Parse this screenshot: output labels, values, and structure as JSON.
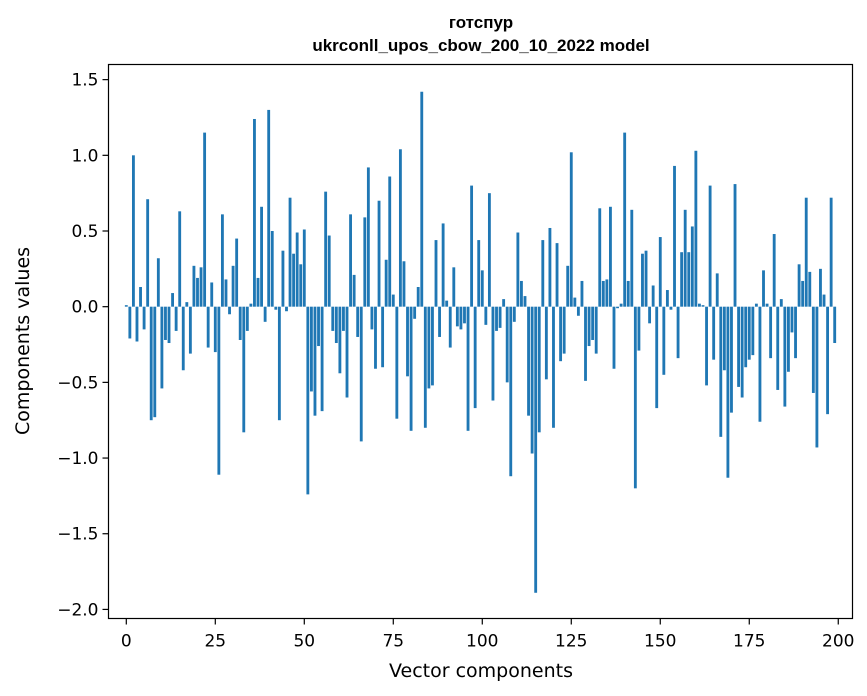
{
  "chart_data": {
    "type": "bar",
    "title": "готспур",
    "subtitle": "ukrconll_upos_cbow_200_10_2022 model",
    "xlabel": "Vector components",
    "ylabel": "Components values",
    "xlim": [
      -5,
      204
    ],
    "ylim": [
      -2.06,
      1.6
    ],
    "xticks": [
      0,
      25,
      50,
      75,
      100,
      125,
      150,
      175,
      200
    ],
    "yticks": [
      1.5,
      1.0,
      0.5,
      0.0,
      -0.5,
      -1.0,
      -1.5,
      -2.0
    ],
    "ytick_labels": [
      "1.5",
      "1.0",
      "0.5",
      "0.0",
      "−0.5",
      "−1.0",
      "−1.5",
      "−2.0"
    ],
    "grid": false,
    "bar_color": "#1f77b4",
    "values": [
      0.01,
      -0.21,
      1.0,
      -0.23,
      0.13,
      -0.15,
      0.71,
      -0.75,
      -0.73,
      0.32,
      -0.54,
      -0.22,
      -0.24,
      0.09,
      -0.16,
      0.63,
      -0.42,
      0.03,
      -0.31,
      0.27,
      0.19,
      0.26,
      1.15,
      -0.27,
      0.16,
      -0.3,
      -1.11,
      0.61,
      0.18,
      -0.05,
      0.27,
      0.45,
      -0.22,
      -0.83,
      -0.16,
      0.02,
      1.24,
      0.19,
      0.66,
      -0.1,
      1.3,
      0.5,
      -0.02,
      -0.75,
      0.37,
      -0.03,
      0.72,
      0.35,
      0.49,
      0.28,
      0.51,
      -1.24,
      -0.56,
      -0.72,
      -0.26,
      -0.69,
      0.76,
      0.47,
      -0.16,
      -0.24,
      -0.44,
      -0.16,
      -0.6,
      0.61,
      0.21,
      -0.2,
      -0.89,
      0.59,
      0.92,
      -0.15,
      -0.41,
      0.7,
      -0.4,
      0.31,
      0.86,
      0.08,
      -0.74,
      1.04,
      0.3,
      -0.46,
      -0.82,
      -0.08,
      0.13,
      1.42,
      -0.8,
      -0.54,
      -0.52,
      0.44,
      -0.2,
      0.55,
      0.04,
      -0.27,
      0.26,
      -0.13,
      -0.15,
      -0.11,
      -0.82,
      0.8,
      -0.67,
      0.44,
      0.24,
      -0.12,
      0.75,
      -0.62,
      -0.16,
      -0.14,
      0.05,
      -0.5,
      -1.12,
      -0.1,
      0.49,
      0.17,
      0.07,
      -0.72,
      -0.97,
      -1.89,
      -0.83,
      0.44,
      -0.48,
      0.52,
      -0.8,
      0.42,
      -0.36,
      -0.31,
      0.27,
      1.02,
      0.06,
      -0.06,
      0.17,
      -0.49,
      -0.26,
      -0.22,
      -0.31,
      0.65,
      0.17,
      0.18,
      0.66,
      -0.41,
      -0.01,
      0.02,
      1.15,
      0.17,
      0.64,
      -1.2,
      -0.29,
      0.35,
      0.37,
      -0.11,
      0.14,
      -0.67,
      0.46,
      -0.45,
      0.11,
      -0.02,
      0.93,
      -0.34,
      0.36,
      0.64,
      0.36,
      0.53,
      1.03,
      0.02,
      0.01,
      -0.52,
      0.8,
      -0.35,
      0.22,
      -0.86,
      -0.42,
      -1.13,
      -0.7,
      0.81,
      -0.53,
      -0.6,
      -0.4,
      -0.35,
      -0.32,
      0.02,
      -0.76,
      0.24,
      0.02,
      -0.34,
      0.48,
      -0.55,
      0.05,
      -0.66,
      -0.43,
      -0.17,
      -0.34,
      0.28,
      0.17,
      0.72,
      0.23,
      -0.57,
      -0.93,
      0.25,
      0.08,
      -0.71,
      0.72,
      -0.24
    ]
  }
}
